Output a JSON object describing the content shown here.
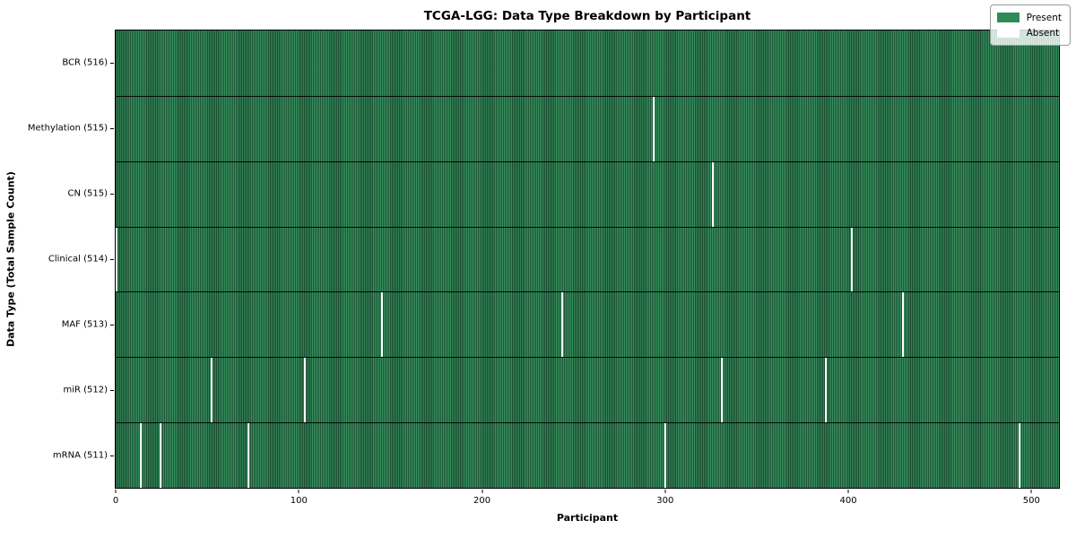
{
  "title": "TCGA-LGG: Data Type Breakdown by Participant",
  "colors": {
    "present": "#2e8b57",
    "present_stripe_dark": "#1a5236",
    "absent": "#ffffff",
    "axis": "#000000",
    "legend_background": "rgba(255,255,255,0.8)"
  },
  "legend": {
    "present_label": "Present",
    "absent_label": "Absent",
    "position": "upper right"
  },
  "chart_data": {
    "type": "heatmap",
    "title": "TCGA-LGG: Data Type Breakdown by Participant",
    "xlabel": "Participant",
    "ylabel": "Data Type (Total Sample Count)",
    "x_range": [
      0,
      516
    ],
    "n_participants": 516,
    "x_ticks": [
      0,
      100,
      200,
      300,
      400,
      500
    ],
    "grid": false,
    "legend_entries": [
      "Present",
      "Absent"
    ],
    "legend_position": "upper right",
    "rows": [
      {
        "label": "BCR (516)",
        "data_type": "BCR",
        "present_count": 516,
        "absent_count": 0,
        "absent_participants": []
      },
      {
        "label": "Methylation (515)",
        "data_type": "Methylation",
        "present_count": 515,
        "absent_count": 1,
        "absent_participants": [
          294
        ]
      },
      {
        "label": "CN (515)",
        "data_type": "CN",
        "present_count": 515,
        "absent_count": 1,
        "absent_participants": [
          326
        ]
      },
      {
        "label": "Clinical (514)",
        "data_type": "Clinical",
        "present_count": 514,
        "absent_count": 2,
        "absent_participants": [
          0,
          402
        ]
      },
      {
        "label": "MAF (513)",
        "data_type": "MAF",
        "present_count": 513,
        "absent_count": 3,
        "absent_participants": [
          145,
          244,
          430
        ]
      },
      {
        "label": "miR (512)",
        "data_type": "miR",
        "present_count": 512,
        "absent_count": 4,
        "absent_participants": [
          52,
          103,
          331,
          388
        ]
      },
      {
        "label": "mRNA (511)",
        "data_type": "mRNA",
        "present_count": 511,
        "absent_count": 5,
        "absent_participants": [
          13,
          24,
          72,
          300,
          494
        ]
      }
    ]
  }
}
